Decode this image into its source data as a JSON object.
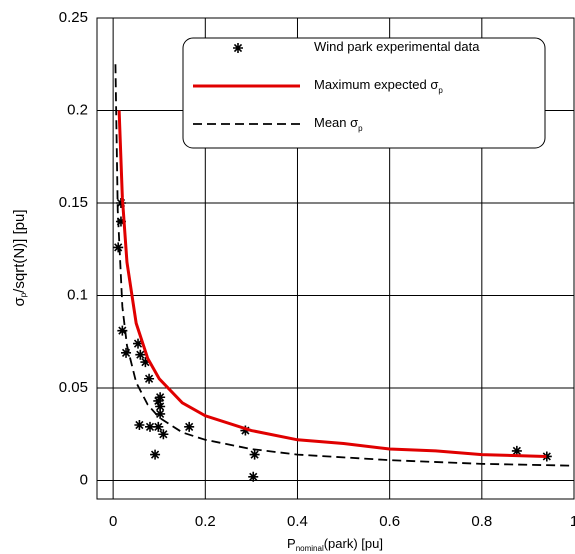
{
  "chart_data": {
    "type": "scatter",
    "x_label": {
      "main": "P",
      "sub": "nominal",
      "rest": "(park) [pu]"
    },
    "y_label": {
      "main": "σ",
      "sub": "p",
      "rest": "/sqrt(N)] [pu]"
    },
    "xlim": [
      -0.035,
      1
    ],
    "ylim": [
      -0.01,
      0.25
    ],
    "xticks": [
      0,
      0.2,
      0.4,
      0.6,
      0.8,
      1
    ],
    "yticks": [
      0,
      0.05,
      0.1,
      0.15,
      0.2,
      0.25
    ],
    "grid": true,
    "legend": "upper right",
    "series": [
      {
        "name": "Wind park experimental data",
        "type": "scatter",
        "color": "#000000",
        "x": [
          0.011,
          0.017,
          0.017,
          0.02,
          0.028,
          0.054,
          0.059,
          0.07,
          0.078,
          0.057,
          0.08,
          0.091,
          0.098,
          0.098,
          0.102,
          0.102,
          0.102,
          0.109,
          0.165,
          0.287,
          0.307,
          0.304,
          0.876,
          0.941
        ],
        "values": [
          0.126,
          0.15,
          0.14,
          0.081,
          0.069,
          0.074,
          0.068,
          0.064,
          0.055,
          0.03,
          0.029,
          0.014,
          0.029,
          0.043,
          0.045,
          0.04,
          0.036,
          0.025,
          0.029,
          0.027,
          0.014,
          0.002,
          0.016,
          0.013
        ]
      },
      {
        "name": "Maximum expected σ",
        "name_sub": "p",
        "type": "line",
        "color": "#e00000",
        "dash": false,
        "x": [
          0.013,
          0.02,
          0.03,
          0.05,
          0.075,
          0.1,
          0.15,
          0.2,
          0.3,
          0.4,
          0.5,
          0.6,
          0.7,
          0.8,
          0.94
        ],
        "values": [
          0.2,
          0.153,
          0.118,
          0.085,
          0.066,
          0.055,
          0.042,
          0.035,
          0.027,
          0.022,
          0.02,
          0.017,
          0.016,
          0.014,
          0.013
        ]
      },
      {
        "name": "Mean σ",
        "name_sub": "p",
        "type": "line",
        "color": "#000000",
        "dash": true,
        "x": [
          0.005,
          0.01,
          0.02,
          0.03,
          0.05,
          0.075,
          0.1,
          0.15,
          0.2,
          0.3,
          0.4,
          0.6,
          0.8,
          1.0
        ],
        "values": [
          0.225,
          0.146,
          0.094,
          0.073,
          0.053,
          0.041,
          0.034,
          0.026,
          0.022,
          0.017,
          0.014,
          0.011,
          0.009,
          0.008
        ]
      }
    ]
  }
}
